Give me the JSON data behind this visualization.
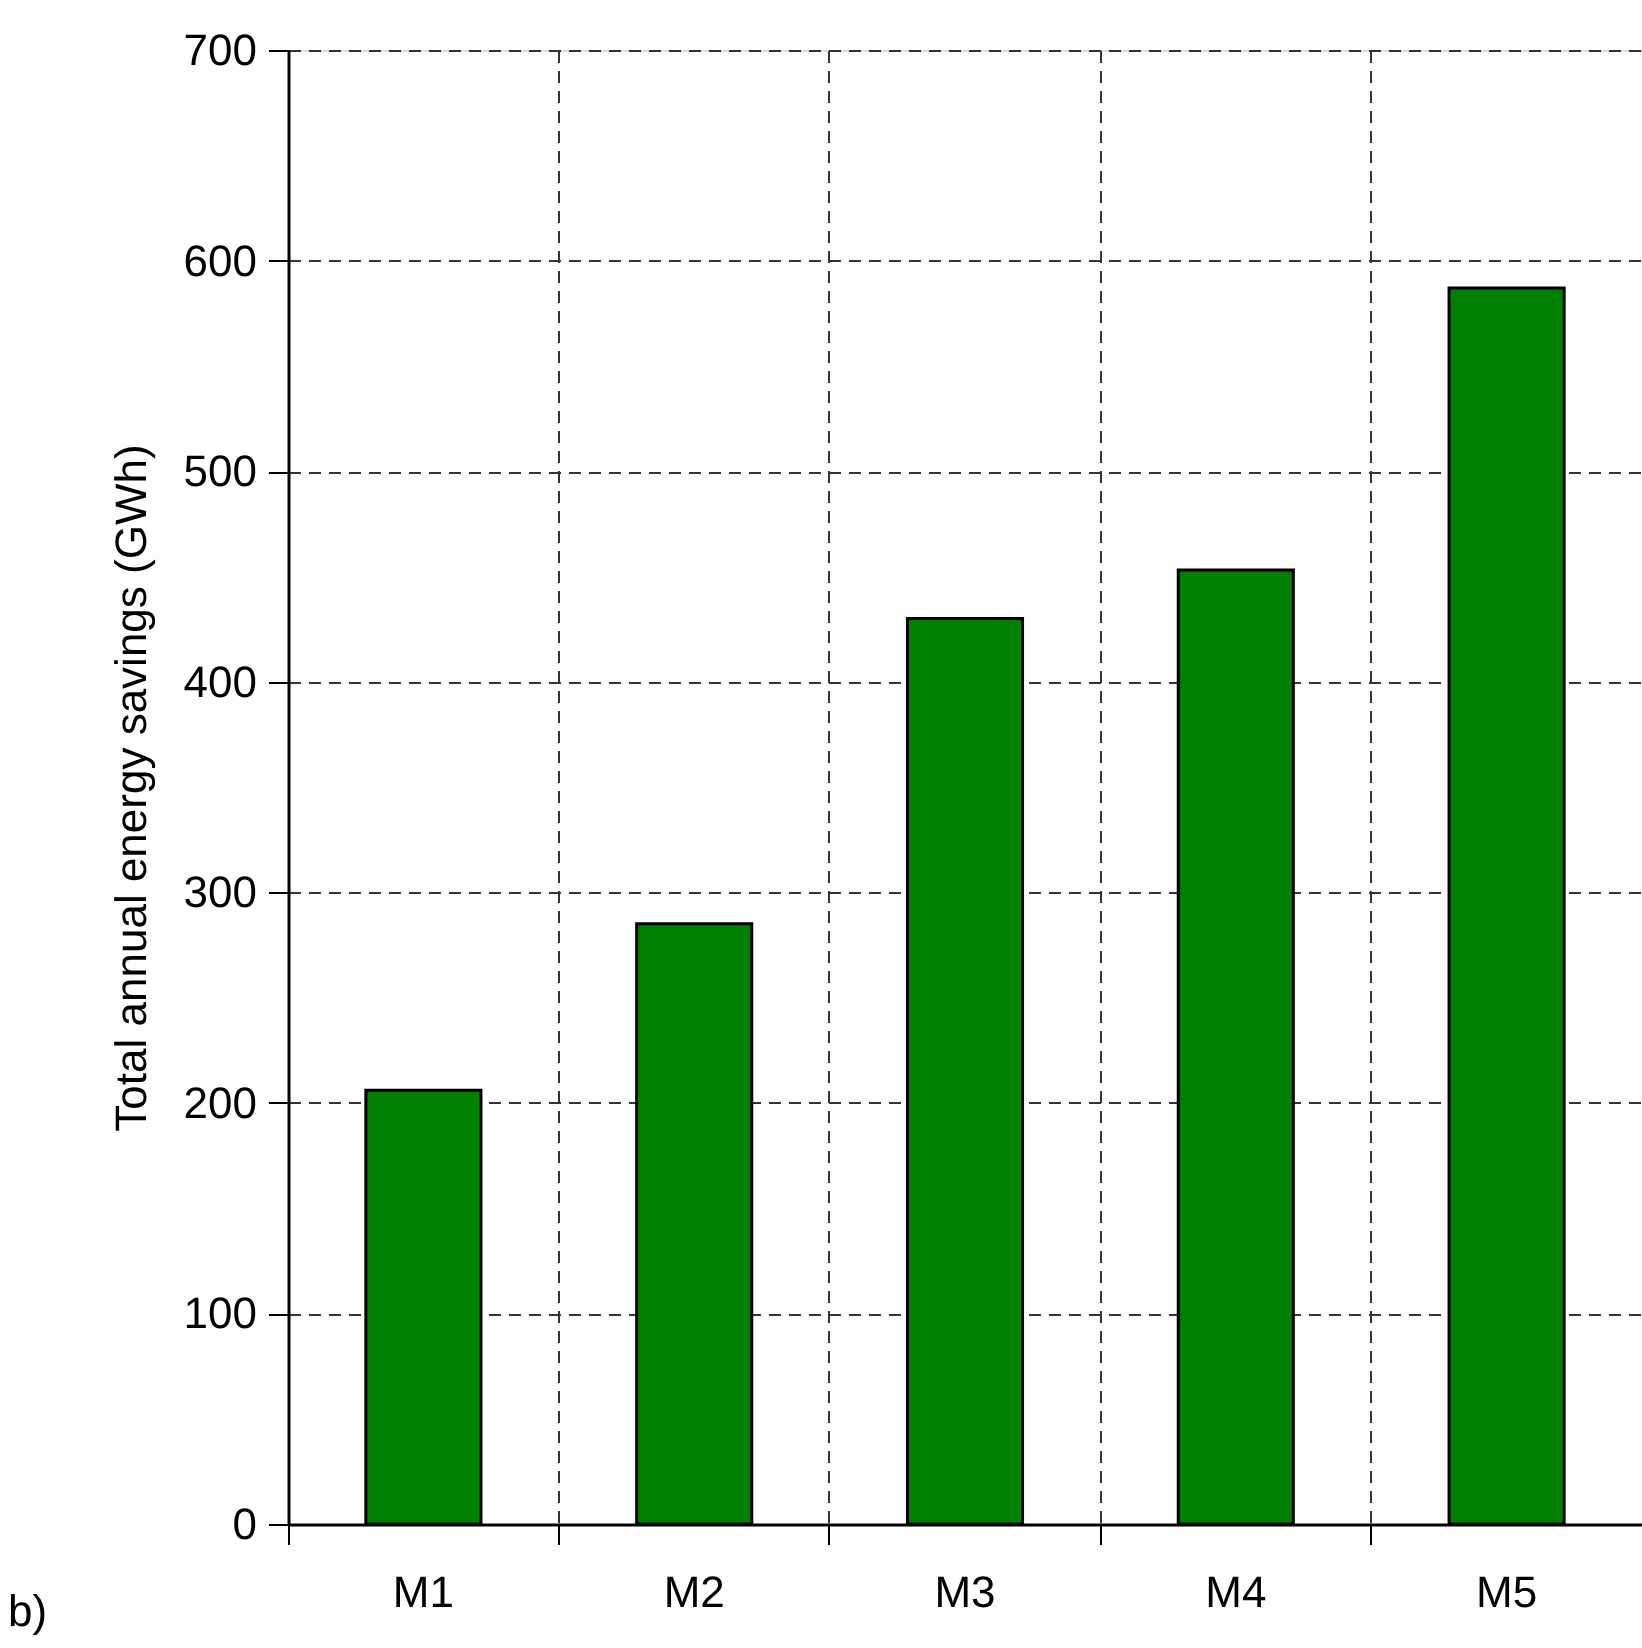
{
  "chart_data": {
    "type": "bar",
    "ylabel": "Total annual energy savings (GWh)",
    "categories": [
      "M1",
      "M2",
      "M3",
      "M4",
      "M5"
    ],
    "values": [
      206,
      285,
      430,
      453,
      587
    ],
    "color": "#008000",
    "ylim": [
      0,
      700
    ],
    "yticks": [
      0,
      100,
      200,
      300,
      400,
      500,
      600,
      700
    ],
    "grid": true,
    "annotations": [
      "b)"
    ]
  }
}
